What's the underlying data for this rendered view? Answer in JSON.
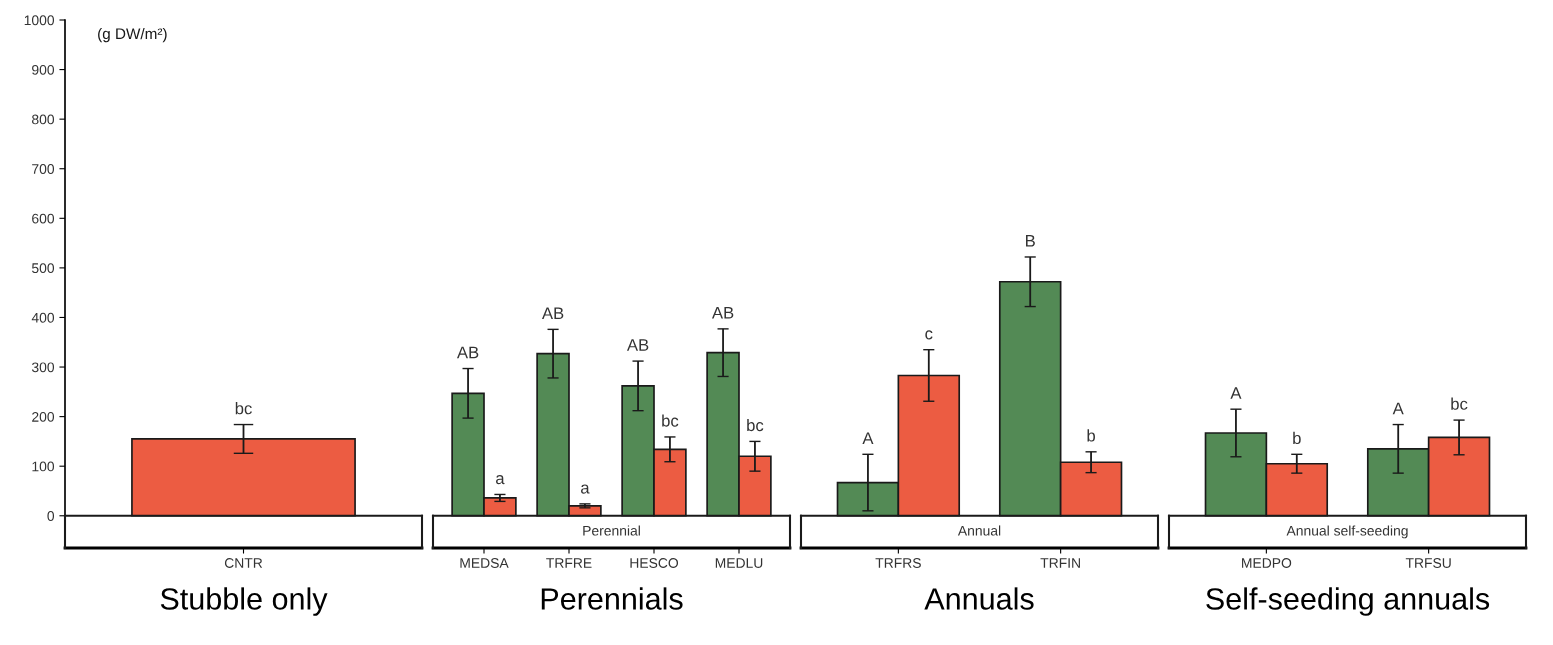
{
  "chart_data": [
    {
      "type": "bar",
      "xlabel": "Stubble only",
      "ylabel": "(g DW/m²)",
      "categories": [
        "CNTR"
      ],
      "ylim": [
        -65,
        1000
      ],
      "yticks": [
        0,
        100,
        200,
        300,
        400,
        500,
        600,
        700,
        800,
        900,
        1000
      ],
      "series": [
        {
          "color": "#ec5c42",
          "values": [
            155
          ],
          "errors": [
            29
          ],
          "value_labels": [
            "bc"
          ]
        }
      ]
    },
    {
      "type": "bar",
      "title": "Perennial",
      "xlabel": "Perennials",
      "categories": [
        "MEDSA",
        "TRFRE",
        "HESCO",
        "MEDLU"
      ],
      "ylim": [
        -65,
        1000
      ],
      "tick_labels": "x",
      "series": [
        {
          "color": "#538a55",
          "values": [
            247,
            327,
            262,
            329
          ],
          "errors": [
            50,
            49,
            50,
            48
          ],
          "value_labels": [
            "AB",
            "AB",
            "AB",
            "AB"
          ]
        },
        {
          "color": "#ec5c42",
          "values": [
            36,
            20,
            134,
            120
          ],
          "errors": [
            7,
            4,
            25,
            30
          ],
          "value_labels": [
            "a",
            "a",
            "bc",
            "bc"
          ]
        }
      ]
    },
    {
      "type": "bar",
      "title": "Annual",
      "xlabel": "Annuals",
      "categories": [
        "TRFRS",
        "TRFIN"
      ],
      "ylim": [
        -65,
        1000
      ],
      "tick_labels": "x",
      "series": [
        {
          "color": "#538a55",
          "values": [
            67,
            472
          ],
          "errors": [
            57,
            50
          ],
          "value_labels": [
            "A",
            "B"
          ]
        },
        {
          "color": "#ec5c42",
          "values": [
            283,
            108
          ],
          "errors": [
            52,
            21
          ],
          "value_labels": [
            "c",
            "b"
          ]
        }
      ]
    },
    {
      "type": "bar",
      "title": "Annual self-seeding",
      "xlabel": "Self-seeding annuals",
      "categories": [
        "MEDPO",
        "TRFSU"
      ],
      "ylim": [
        -65,
        1000
      ],
      "tick_labels": "x",
      "series": [
        {
          "color": "#538a55",
          "values": [
            167,
            135
          ],
          "errors": [
            48,
            49
          ],
          "value_labels": [
            "A",
            "A"
          ]
        },
        {
          "color": "#ec5c42",
          "values": [
            105,
            158
          ],
          "errors": [
            19,
            35
          ],
          "value_labels": [
            "b",
            "bc"
          ]
        }
      ]
    }
  ]
}
